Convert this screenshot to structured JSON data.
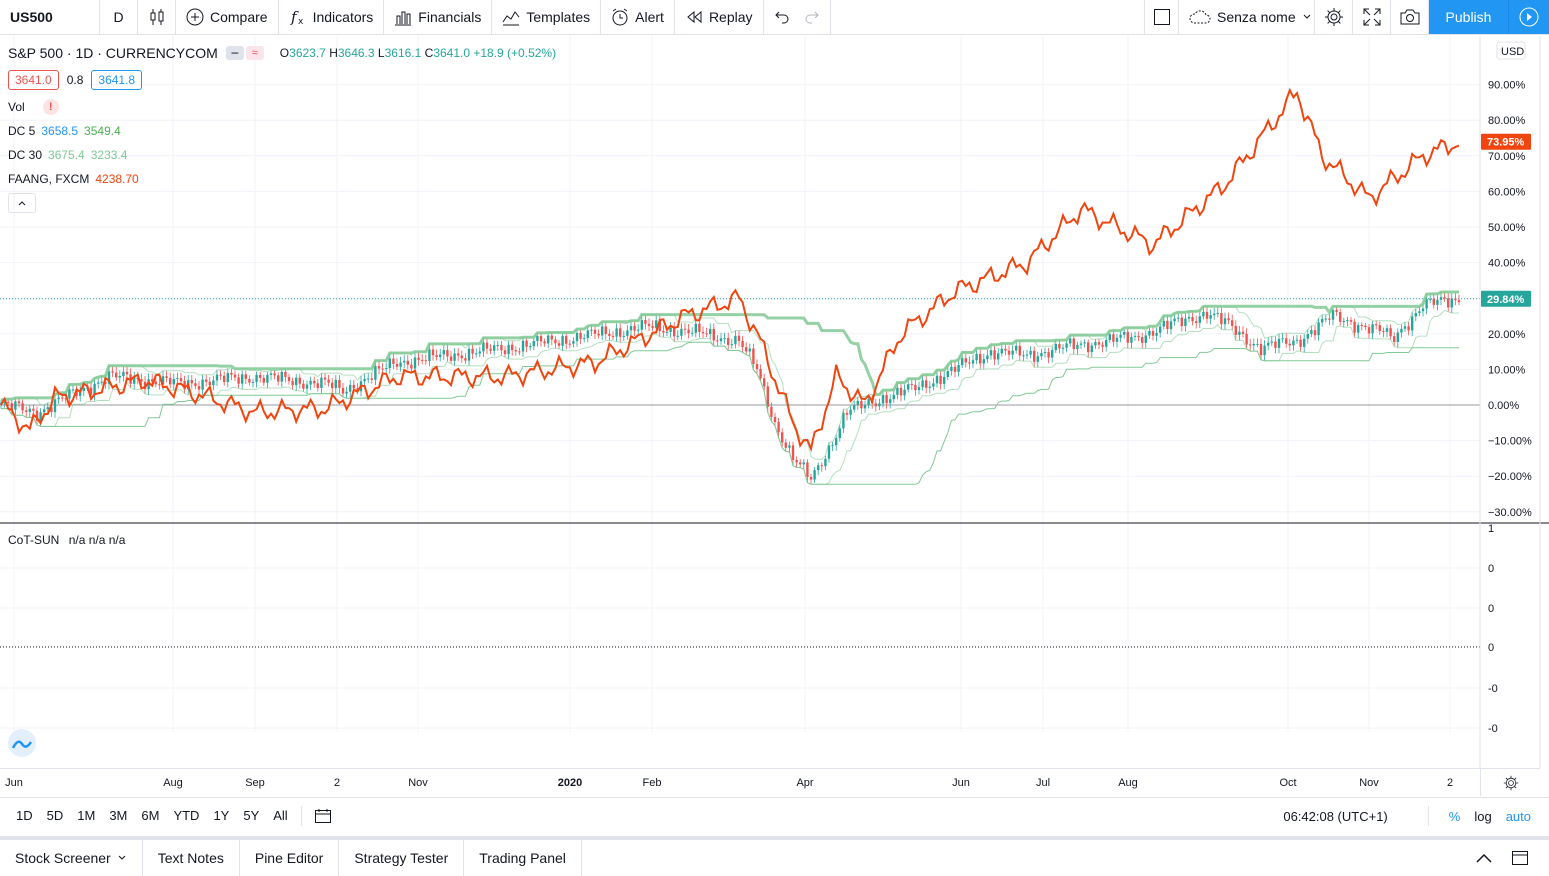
{
  "toolbar": {
    "symbol": "US500",
    "interval": "D",
    "compare": "Compare",
    "indicators": "Indicators",
    "financials": "Financials",
    "templates": "Templates",
    "alert": "Alert",
    "replay": "Replay",
    "layout_name": "Senza nome",
    "publish": "Publish"
  },
  "legend": {
    "title": "S&P 500 · 1D · CURRENCYCOM",
    "ohlc": {
      "o": "3623.7",
      "h": "3646.3",
      "l": "3616.1",
      "c": "3641.0",
      "change": "+18.9 (+0.52%)"
    },
    "bid": "3641.0",
    "spread": "0.8",
    "ask": "3641.8",
    "vol_label": "Vol",
    "dc5": {
      "label": "DC 5",
      "v1": "3658.5",
      "v2": "3549.4"
    },
    "dc30": {
      "label": "DC 30",
      "v1": "3675.4",
      "v2": "3233.4"
    },
    "faang": {
      "label": "FAANG, FXCM",
      "value": "4238.70"
    }
  },
  "price_axis": {
    "currency": "USD",
    "ticks": [
      "90.00%",
      "80.00%",
      "70.00%",
      "60.00%",
      "50.00%",
      "40.00%",
      "20.00%",
      "10.00%",
      "0.00%",
      "−10.00%",
      "−20.00%",
      "−30.00%"
    ],
    "faang_badge": "73.95%",
    "sp_badge": "29.84%"
  },
  "cot": {
    "label": "CoT-SUN",
    "values": "n/a n/a n/a",
    "axis_ticks": [
      "1",
      "0",
      "0",
      "0",
      "-0",
      "-0"
    ]
  },
  "time_axis": {
    "ticks": [
      {
        "label": "Jun",
        "bold": false
      },
      {
        "label": "Aug",
        "bold": false
      },
      {
        "label": "Sep",
        "bold": false
      },
      {
        "label": "2",
        "bold": false
      },
      {
        "label": "Nov",
        "bold": false
      },
      {
        "label": "2020",
        "bold": true
      },
      {
        "label": "Feb",
        "bold": false
      },
      {
        "label": "Apr",
        "bold": false
      },
      {
        "label": "Jun",
        "bold": false
      },
      {
        "label": "Jul",
        "bold": false
      },
      {
        "label": "Aug",
        "bold": false
      },
      {
        "label": "Oct",
        "bold": false
      },
      {
        "label": "Nov",
        "bold": false
      },
      {
        "label": "2",
        "bold": false
      }
    ]
  },
  "range_bar": {
    "ranges": [
      "1D",
      "5D",
      "1M",
      "3M",
      "6M",
      "YTD",
      "1Y",
      "5Y",
      "All"
    ],
    "clock": "06:42:08 (UTC+1)",
    "percent": "%",
    "log": "log",
    "auto": "auto"
  },
  "bottom_tabs": [
    "Stock Screener",
    "Text Notes",
    "Pine Editor",
    "Strategy Tester",
    "Trading Panel"
  ],
  "colors": {
    "faang": "#f0450f",
    "candle_up": "#26a69a",
    "candle_down": "#ef5350",
    "dc": "#81c995",
    "accent": "#2196f3"
  }
}
